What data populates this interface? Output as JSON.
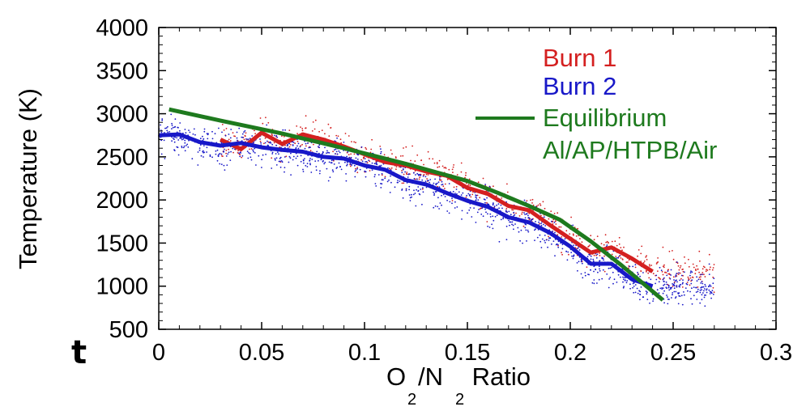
{
  "stray_letter": "t",
  "chart_data": {
    "type": "line",
    "xlabel_parts": {
      "a": "O",
      "a_sub": "2",
      "sep": "/N",
      "b_sub": "2",
      "rest": " Ratio"
    },
    "ylabel": "Temperature (K)",
    "xlim": [
      0,
      0.3
    ],
    "ylim": [
      500,
      4000
    ],
    "x_ticks": [
      "0",
      "0.05",
      "0.1",
      "0.15",
      "0.2",
      "0.25",
      "0.3"
    ],
    "y_ticks": [
      "500",
      "1000",
      "1500",
      "2000",
      "2500",
      "3000",
      "3500",
      "4000"
    ],
    "x_tick_values": [
      0,
      0.05,
      0.1,
      0.15,
      0.2,
      0.25,
      0.3
    ],
    "y_tick_values": [
      500,
      1000,
      1500,
      2000,
      2500,
      3000,
      3500,
      4000
    ],
    "legend_position": "top-right",
    "series": [
      {
        "name": "Burn 1",
        "color": "#d42020",
        "style": "line+scatter",
        "x": [
          0.03,
          0.04,
          0.05,
          0.06,
          0.07,
          0.08,
          0.09,
          0.1,
          0.11,
          0.12,
          0.13,
          0.14,
          0.15,
          0.16,
          0.17,
          0.18,
          0.19,
          0.2,
          0.21,
          0.22,
          0.23,
          0.24
        ],
        "y": [
          2700,
          2590,
          2780,
          2650,
          2760,
          2700,
          2620,
          2530,
          2440,
          2400,
          2330,
          2280,
          2140,
          2070,
          1930,
          1880,
          1710,
          1550,
          1390,
          1450,
          1320,
          1170
        ]
      },
      {
        "name": "Burn 2",
        "color": "#1818c8",
        "style": "line+scatter",
        "x": [
          0.0,
          0.01,
          0.02,
          0.03,
          0.04,
          0.05,
          0.06,
          0.07,
          0.08,
          0.09,
          0.1,
          0.11,
          0.12,
          0.13,
          0.14,
          0.15,
          0.16,
          0.17,
          0.18,
          0.19,
          0.2,
          0.21,
          0.22,
          0.23,
          0.24
        ],
        "y": [
          2750,
          2760,
          2670,
          2630,
          2660,
          2610,
          2580,
          2560,
          2500,
          2480,
          2400,
          2350,
          2230,
          2180,
          2080,
          1990,
          1920,
          1800,
          1740,
          1620,
          1460,
          1260,
          1260,
          1080,
          1000
        ]
      },
      {
        "name": "Equilibrium",
        "name_line2": "Al/AP/HTPB/Air",
        "color": "#1e7a1e",
        "style": "line",
        "x": [
          0.005,
          0.03,
          0.06,
          0.09,
          0.12,
          0.15,
          0.165,
          0.18,
          0.195,
          0.21,
          0.225,
          0.235,
          0.245
        ],
        "y": [
          3050,
          2920,
          2770,
          2600,
          2420,
          2220,
          2080,
          1930,
          1770,
          1520,
          1240,
          1040,
          840
        ]
      }
    ]
  }
}
